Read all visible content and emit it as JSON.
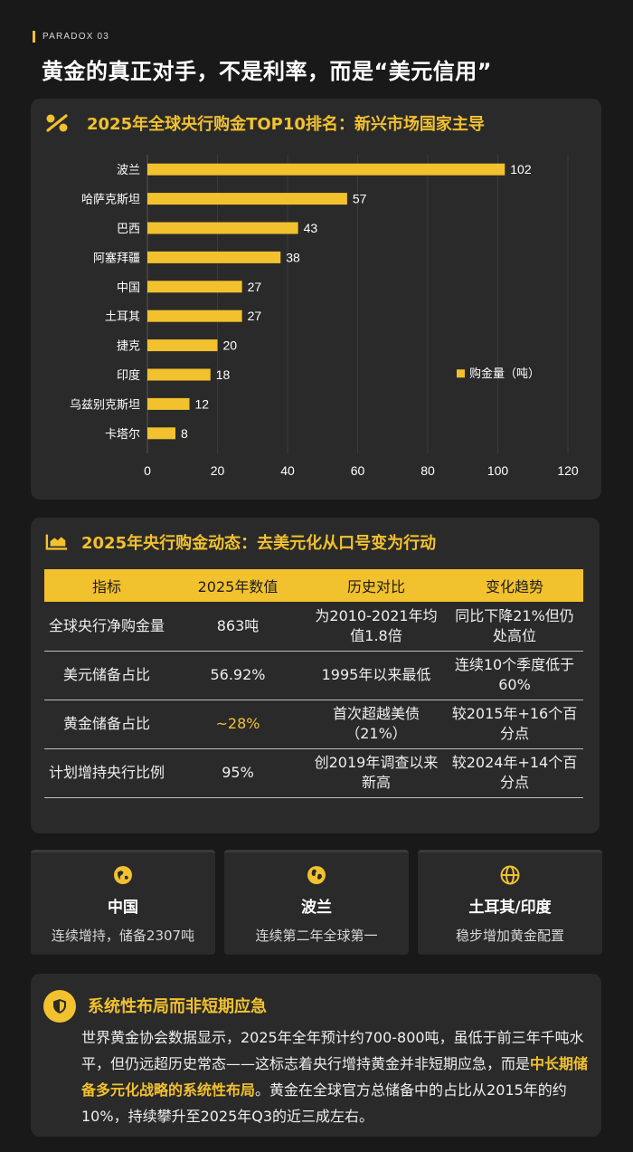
{
  "header": {
    "kicker": "PARADOX 03",
    "title": "黄金的真正对手，不是利率，而是“美元信用”"
  },
  "chart_section": {
    "title": "2025年全球央行购金TOP10排名：新兴市场国家主导",
    "icon": "percent-icon"
  },
  "chart_data": {
    "type": "bar",
    "orientation": "horizontal",
    "categories": [
      "波兰",
      "哈萨克斯坦",
      "巴西",
      "阿塞拜疆",
      "中国",
      "土耳其",
      "捷克",
      "印度",
      "乌兹别克斯坦",
      "卡塔尔"
    ],
    "series": [
      {
        "name": "购金量（吨）",
        "values": [
          102,
          57,
          43,
          38,
          27,
          27,
          20,
          18,
          12,
          8
        ]
      }
    ],
    "xlim": [
      0,
      120
    ],
    "xticks": [
      0,
      20,
      40,
      60,
      80,
      100,
      120
    ],
    "grid": true,
    "legend": "right",
    "color": "#F2C12E"
  },
  "table_section": {
    "title": "2025年央行购金动态：去美元化从口号变为行动",
    "icon": "area-chart-icon",
    "headers": [
      "指标",
      "2025年数值",
      "历史对比",
      "变化趋势"
    ],
    "rows": [
      [
        "全球央行净购金量",
        "863吨",
        "为2010-2021年均值1.8倍",
        "同比下降21%但仍处高位"
      ],
      [
        "美元储备占比",
        "56.92%",
        "1995年以来最低",
        "连续10个季度低于60%"
      ],
      [
        "黄金储备占比",
        "~28%",
        "首次超越美债（21%）",
        "较2015年+16个百分点"
      ],
      [
        "计划增持央行比例",
        "95%",
        "创2019年调查以来新高",
        "较2024年+14个百分点"
      ]
    ]
  },
  "countries": [
    {
      "name": "中国",
      "desc": "连续增持，储备2307吨",
      "icon": "globe-asia-icon"
    },
    {
      "name": "波兰",
      "desc": "连续第二年全球第一",
      "icon": "globe-europe-icon"
    },
    {
      "name": "土耳其/印度",
      "desc": "稳步增加黄金配置",
      "icon": "globe-grid-icon"
    }
  ],
  "system": {
    "title": "系统性布局而非短期应急",
    "icon": "shield-icon",
    "body_part1": "世界黄金协会数据显示，2025年全年预计约700-800吨，虽低于前三年千吨水平，但仍远超历史常态——这标志着央行增持黄金并非短期应急，而是",
    "body_highlight": "中长期储备多元化战略的系统性布局",
    "body_part2": "。黄金在全球官方总储备中的占比从2015年的约10%，持续攀升至2025年Q3的近三成左右。"
  },
  "colors": {
    "accent": "#F2C12E",
    "background": "#191919",
    "card": "#2a2a2a"
  }
}
